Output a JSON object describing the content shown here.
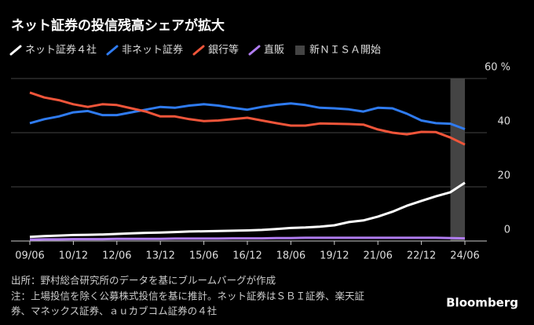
{
  "chart_data": {
    "type": "line",
    "title": "ネット証券の投信残高シェアが拡大",
    "categories": [
      "09/06",
      null,
      null,
      "10/12",
      null,
      null,
      "12/06",
      null,
      null,
      "13/12",
      null,
      null,
      "15/06",
      null,
      null,
      "16/12",
      null,
      null,
      "18/06",
      null,
      null,
      "19/12",
      null,
      null,
      "21/06",
      null,
      null,
      "22/12",
      null,
      null,
      "24/06"
    ],
    "series": [
      {
        "name": "ネット証券４社",
        "color": "#ffffff",
        "values": [
          1.5,
          1.8,
          2.0,
          2.2,
          2.3,
          2.4,
          2.6,
          2.8,
          3.0,
          3.1,
          3.3,
          3.5,
          3.6,
          3.7,
          3.8,
          3.9,
          4.1,
          4.4,
          4.8,
          5.0,
          5.3,
          5.8,
          7.0,
          7.6,
          9.0,
          10.8,
          13.0,
          14.8,
          16.5,
          18.0,
          21.5
        ]
      },
      {
        "name": "非ネット証券",
        "color": "#2f7bf0",
        "values": [
          43.5,
          45.0,
          46.0,
          47.5,
          48.0,
          46.5,
          46.5,
          47.5,
          48.5,
          49.5,
          49.2,
          50.0,
          50.5,
          50.0,
          49.2,
          48.5,
          49.5,
          50.3,
          50.8,
          50.2,
          49.2,
          49.0,
          48.6,
          47.8,
          49.2,
          49.0,
          47.0,
          44.5,
          43.5,
          43.3,
          41.3
        ]
      },
      {
        "name": "銀行等",
        "color": "#f0553a",
        "values": [
          54.8,
          53.0,
          52.0,
          50.5,
          49.5,
          50.5,
          50.2,
          49.0,
          47.8,
          46.0,
          46.0,
          45.0,
          44.3,
          44.5,
          45.0,
          45.5,
          44.5,
          43.5,
          42.6,
          42.6,
          43.4,
          43.3,
          43.2,
          43.0,
          41.2,
          40.0,
          39.4,
          40.3,
          40.2,
          38.2,
          35.6
        ]
      },
      {
        "name": "直販",
        "color": "#b07cf0",
        "values": [
          0.5,
          0.6,
          0.6,
          0.7,
          0.7,
          0.7,
          0.8,
          0.8,
          0.8,
          0.8,
          0.9,
          0.9,
          0.9,
          0.9,
          1.0,
          1.0,
          1.0,
          1.1,
          1.1,
          1.2,
          1.2,
          1.2,
          1.2,
          1.2,
          1.2,
          1.2,
          1.2,
          1.2,
          1.2,
          1.1,
          1.0
        ]
      }
    ],
    "shade": {
      "name": "新ＮＩＳＡ開始",
      "color": "#444444"
    },
    "ylim": [
      0,
      60
    ],
    "yticks": [
      0,
      20,
      40,
      {
        "value": 60,
        "label": "60 %"
      }
    ],
    "grid": true,
    "notes": [
      "出所：野村総合研究所のデータを基にブルームバーグが作成",
      "注：上場投信を除く公募株式投信を基に推計。ネット証券はＳＢＩ証券、楽天証",
      "券、マネックス証券、ａｕカブコム証券の４社"
    ],
    "brand": "Bloomberg"
  }
}
